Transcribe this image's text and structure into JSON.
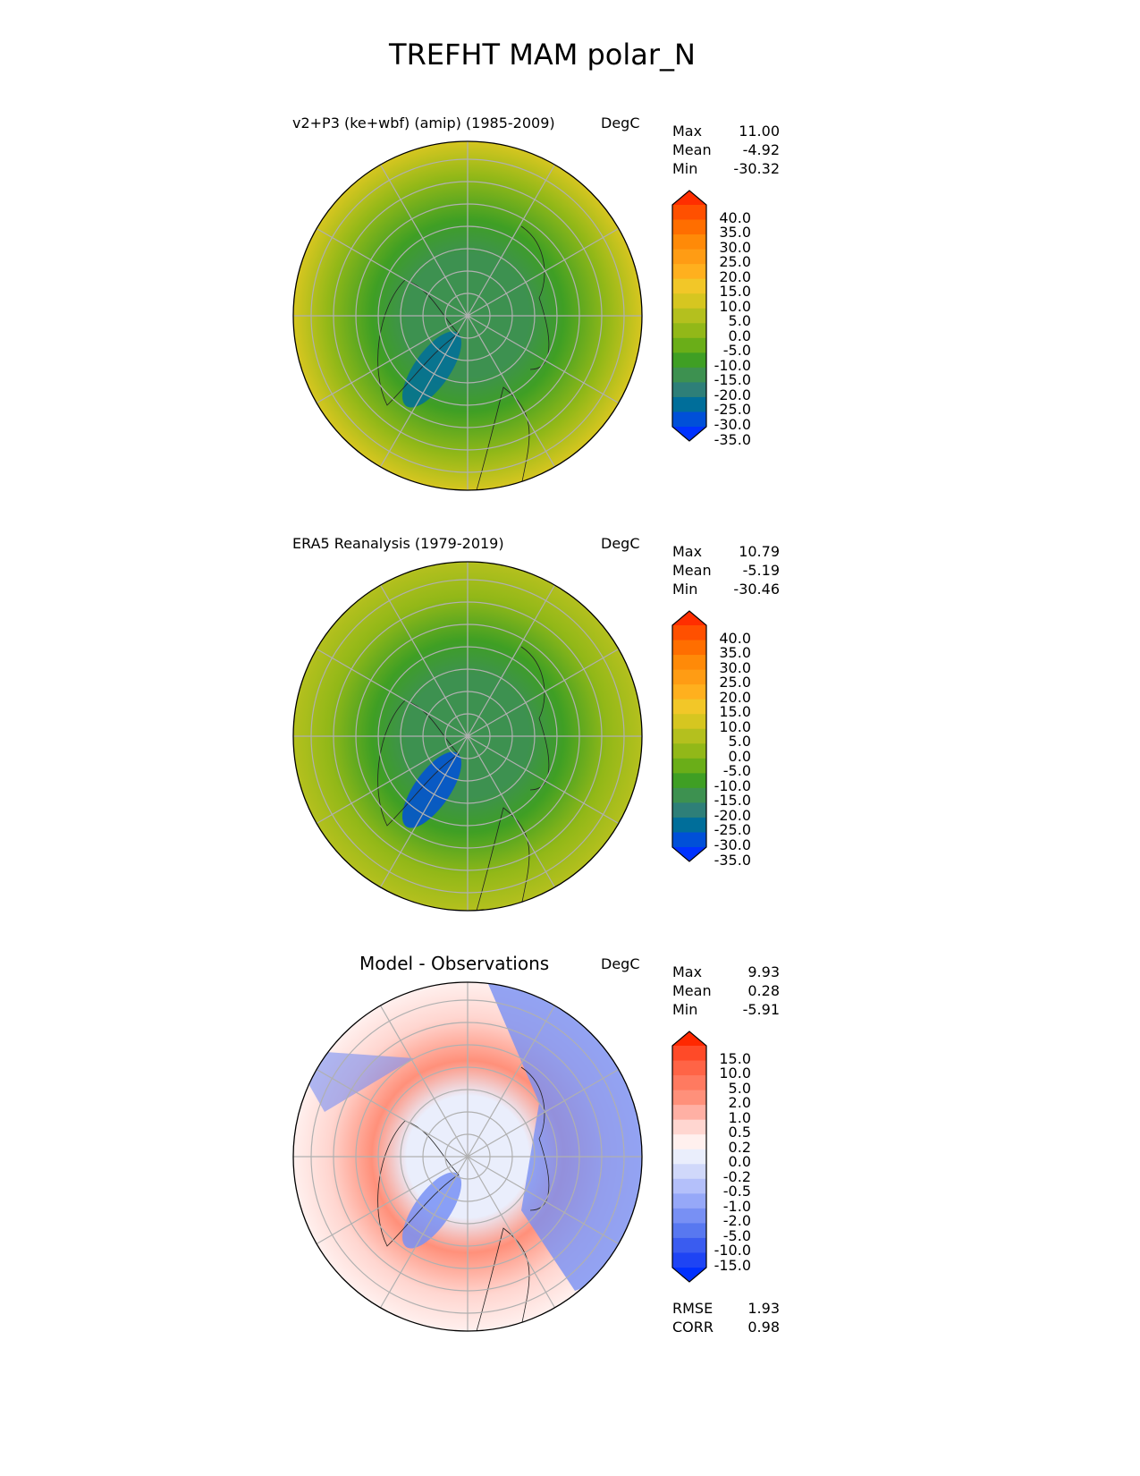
{
  "figure_title": "TREFHT MAM polar_N",
  "panels": [
    {
      "title": "v2+P3 (ke+wbf) (amip) (1985-2009)",
      "units": "DegC",
      "stats": [
        {
          "k": "Max",
          "v": "11.00"
        },
        {
          "k": "Mean",
          "v": "-4.92"
        },
        {
          "k": "Min",
          "v": "-30.32"
        }
      ],
      "colorbar_labels": [
        "40.0",
        "35.0",
        "30.0",
        "25.0",
        "20.0",
        "15.0",
        "10.0",
        "5.0",
        "0.0",
        "-5.0",
        "-10.0",
        "-15.0",
        "-20.0",
        "-25.0",
        "-30.0",
        "-35.0"
      ],
      "colorbar_colors": [
        "#ff2e00",
        "#ff5000",
        "#ff6e00",
        "#ff8a08",
        "#ff9c14",
        "#ffb01e",
        "#f2c728",
        "#d6c620",
        "#b4c01e",
        "#92b818",
        "#6aae18",
        "#3f9f24",
        "#3d9150",
        "#2e7f78",
        "#006e9a",
        "#0050d8",
        "#0032ff"
      ],
      "map_colors": {
        "pole": "#3d9150",
        "mid": "#3f9f24",
        "outer": "#92b818",
        "edge": "#d6c620",
        "cold": "#006e9a"
      }
    },
    {
      "title": "ERA5 Reanalysis (1979-2019)",
      "units": "DegC",
      "stats": [
        {
          "k": "Max",
          "v": "10.79"
        },
        {
          "k": "Mean",
          "v": "-5.19"
        },
        {
          "k": "Min",
          "v": "-30.46"
        }
      ],
      "colorbar_labels": [
        "40.0",
        "35.0",
        "30.0",
        "25.0",
        "20.0",
        "15.0",
        "10.0",
        "5.0",
        "0.0",
        "-5.0",
        "-10.0",
        "-15.0",
        "-20.0",
        "-25.0",
        "-30.0",
        "-35.0"
      ],
      "colorbar_colors": [
        "#ff2e00",
        "#ff5000",
        "#ff6e00",
        "#ff8a08",
        "#ff9c14",
        "#ffb01e",
        "#f2c728",
        "#d6c620",
        "#b4c01e",
        "#92b818",
        "#6aae18",
        "#3f9f24",
        "#3d9150",
        "#2e7f78",
        "#006e9a",
        "#0050d8",
        "#0032ff"
      ],
      "map_colors": {
        "pole": "#3d9150",
        "mid": "#3f9f24",
        "outer": "#92b818",
        "edge": "#b4c01e",
        "cold": "#0050d8"
      }
    },
    {
      "title": "Model - Observations",
      "units": "DegC",
      "stats": [
        {
          "k": "Max",
          "v": "9.93"
        },
        {
          "k": "Mean",
          "v": "0.28"
        },
        {
          "k": "Min",
          "v": "-5.91"
        }
      ],
      "colorbar_labels": [
        "15.0",
        "10.0",
        "5.0",
        "2.0",
        "1.0",
        "0.5",
        "0.2",
        "0.0",
        "-0.2",
        "-0.5",
        "-1.0",
        "-2.0",
        "-5.0",
        "-10.0",
        "-15.0"
      ],
      "colorbar_colors": [
        "#ff2800",
        "#ff4a28",
        "#ff6446",
        "#ff7a60",
        "#ff907a",
        "#ffb0a4",
        "#ffd6d0",
        "#fff0ee",
        "#eaeefc",
        "#d0d8fa",
        "#b4c0fa",
        "#96a8f8",
        "#7890f4",
        "#5878f0",
        "#3a5cf0",
        "#1e44f4",
        "#0030ff"
      ],
      "map_colors": {
        "pole": "#eaeefc",
        "mid": "#ff907a",
        "outer": "#ffd6d0",
        "edge": "#fff0ee",
        "cold": "#7890f4"
      },
      "metrics": [
        {
          "k": "RMSE",
          "v": "1.93"
        },
        {
          "k": "CORR",
          "v": "0.98"
        }
      ]
    }
  ]
}
